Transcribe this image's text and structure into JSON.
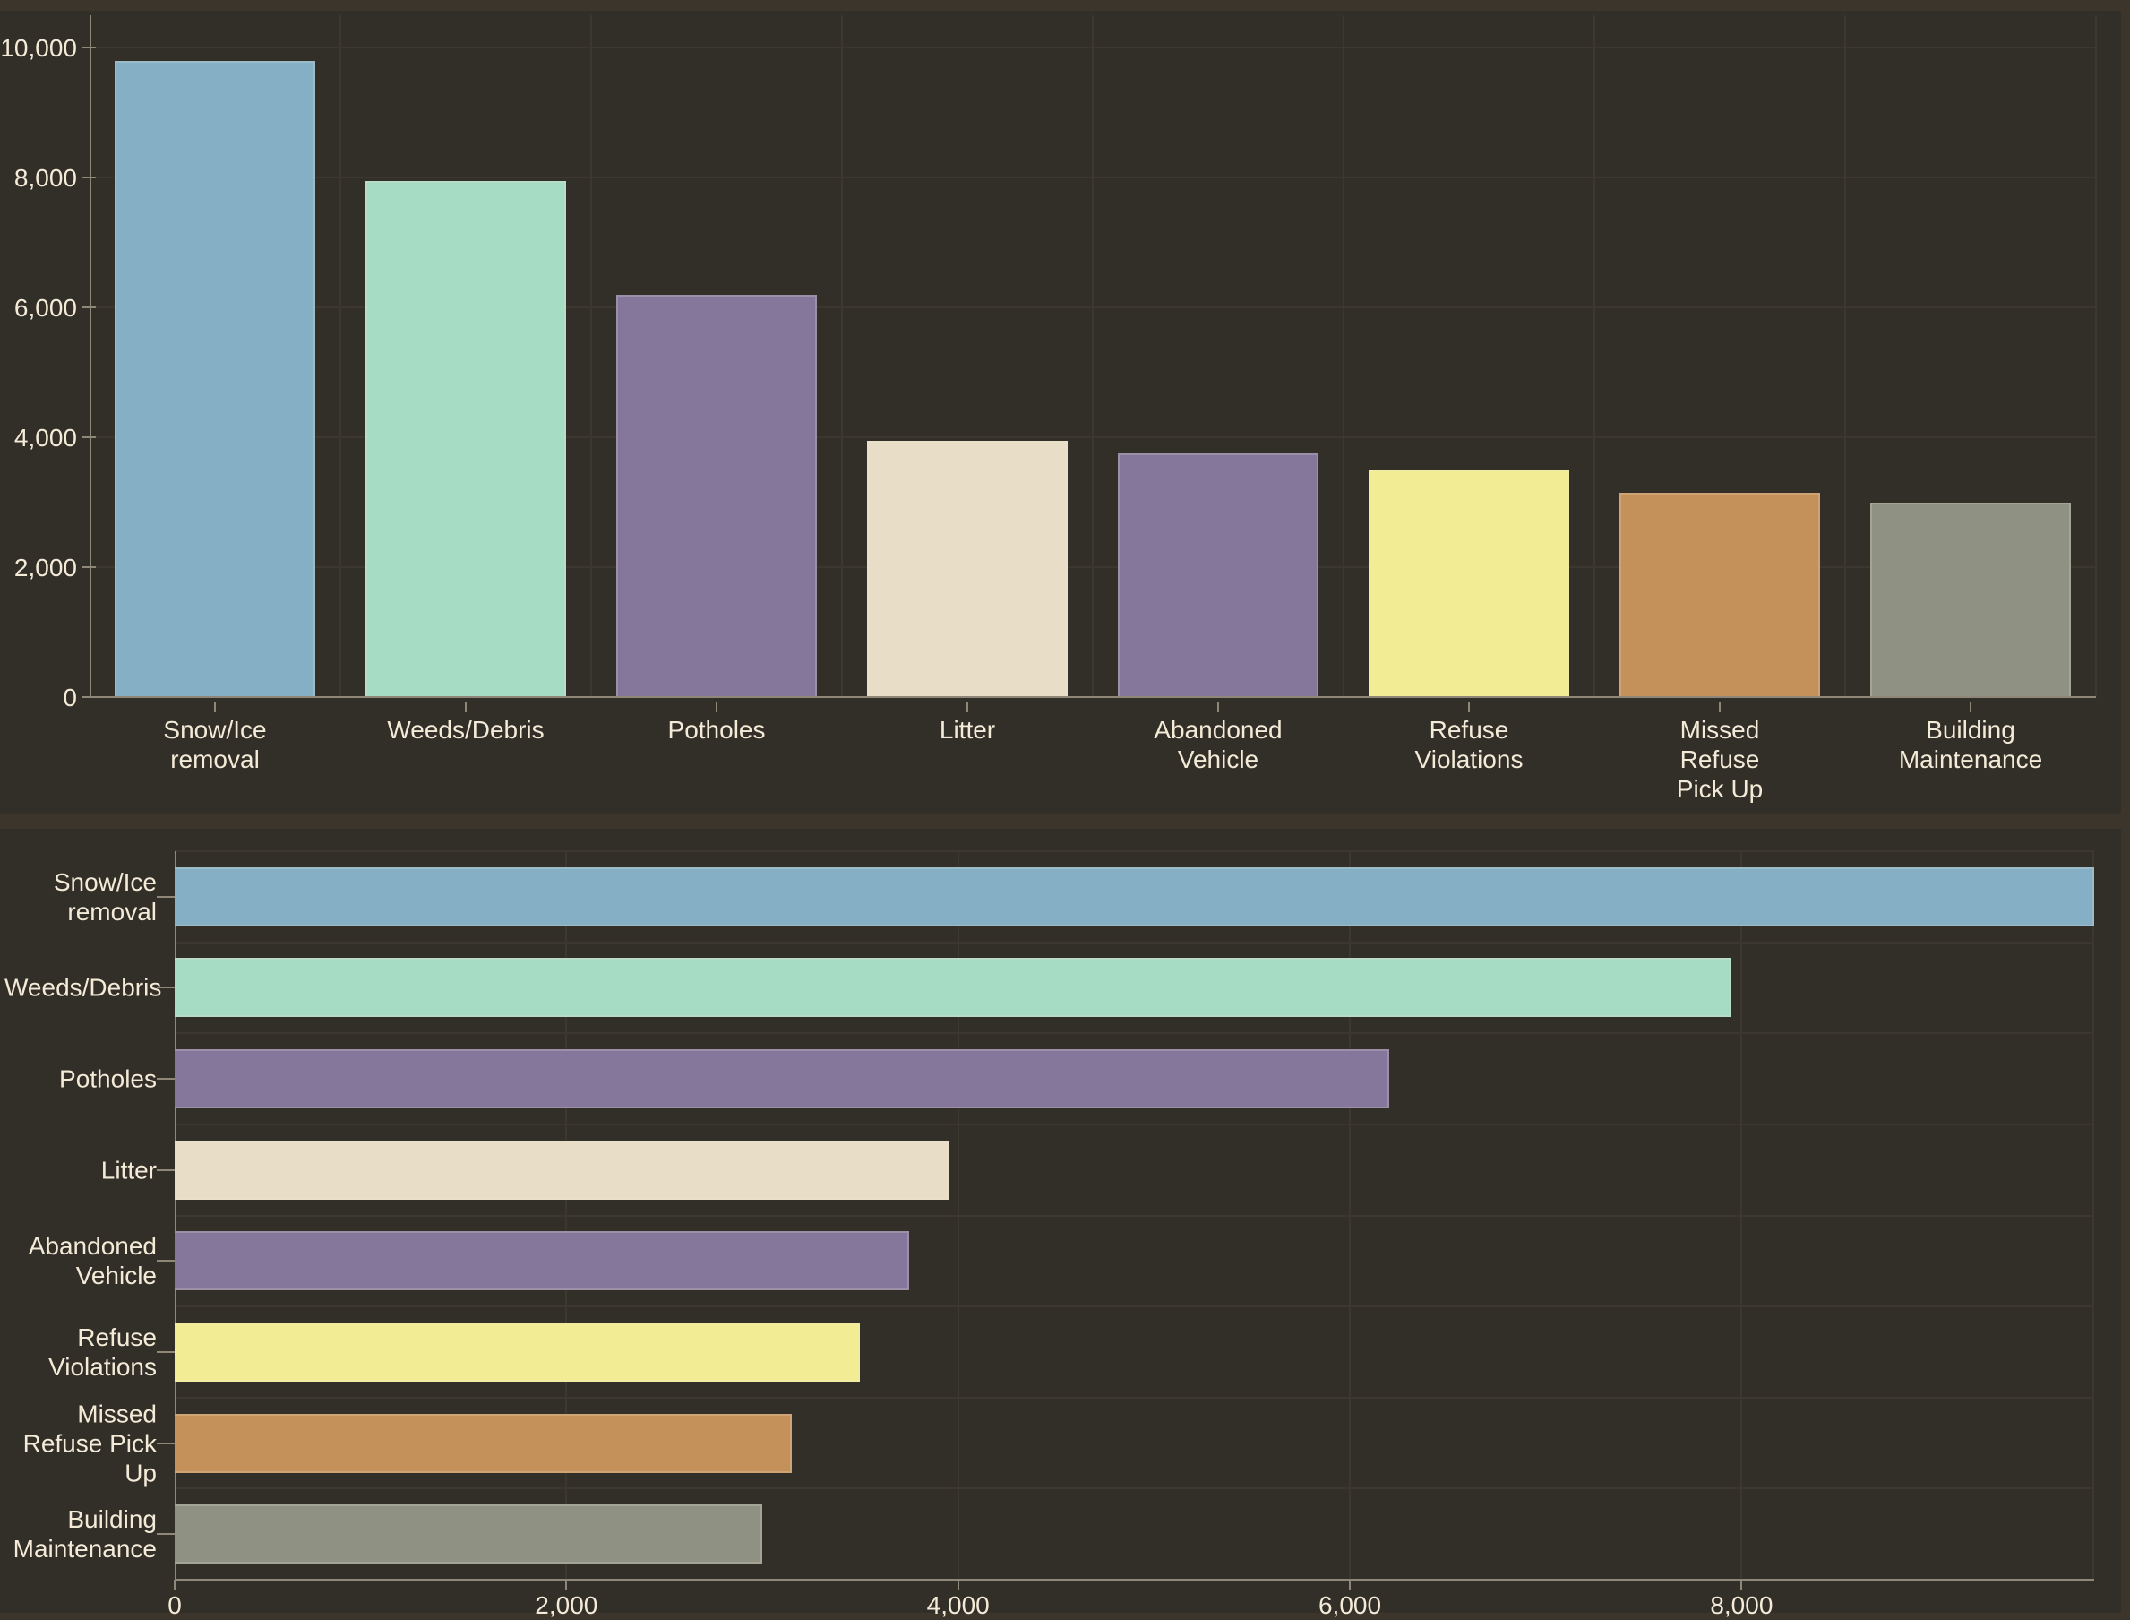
{
  "chart_data": [
    {
      "id": "top",
      "type": "bar",
      "orientation": "vertical",
      "title": "",
      "xlabel": "",
      "ylabel": "",
      "categories": [
        "Snow/Ice removal",
        "Weeds/Debris",
        "Potholes",
        "Litter",
        "Abandoned Vehicle",
        "Refuse Violations",
        "Missed Refuse Pick Up",
        "Building Maintenance"
      ],
      "category_label_lines": [
        [
          "Snow/Ice",
          "removal"
        ],
        [
          "Weeds/Debris"
        ],
        [
          "Potholes"
        ],
        [
          "Litter"
        ],
        [
          "Abandoned",
          "Vehicle"
        ],
        [
          "Refuse",
          "Violations"
        ],
        [
          "Missed",
          "Refuse",
          "Pick Up"
        ],
        [
          "Building",
          "Maintenance"
        ]
      ],
      "values": [
        9800,
        7950,
        6200,
        3950,
        3750,
        3500,
        3150,
        3000
      ],
      "ylim": [
        0,
        10000
      ],
      "yticks": [
        {
          "value": 0,
          "label": "0"
        },
        {
          "value": 2000,
          "label": "2,000"
        },
        {
          "value": 4000,
          "label": "4,000"
        },
        {
          "value": 6000,
          "label": "6,000"
        },
        {
          "value": 8000,
          "label": "8,000"
        },
        {
          "value": 10000,
          "label": "10,000"
        }
      ],
      "grid": true,
      "legend": false
    },
    {
      "id": "bottom",
      "type": "bar",
      "orientation": "horizontal",
      "title": "",
      "xlabel": "",
      "ylabel": "",
      "categories": [
        "Snow/Ice removal",
        "Weeds/Debris",
        "Potholes",
        "Litter",
        "Abandoned Vehicle",
        "Refuse Violations",
        "Missed Refuse Pick Up",
        "Building Maintenance"
      ],
      "category_label_lines": [
        [
          "Snow/Ice",
          "removal"
        ],
        [
          "Weeds/Debris"
        ],
        [
          "Potholes"
        ],
        [
          "Litter"
        ],
        [
          "Abandoned",
          "Vehicle"
        ],
        [
          "Refuse",
          "Violations"
        ],
        [
          "Missed",
          "Refuse Pick",
          "Up"
        ],
        [
          "Building",
          "Maintenance"
        ]
      ],
      "values": [
        9800,
        7950,
        6200,
        3950,
        3750,
        3500,
        3150,
        3000
      ],
      "xlim": [
        0,
        9800
      ],
      "xticks": [
        {
          "value": 0,
          "label": "0"
        },
        {
          "value": 2000,
          "label": "2,000"
        },
        {
          "value": 4000,
          "label": "4,000"
        },
        {
          "value": 6000,
          "label": "6,000"
        },
        {
          "value": 8000,
          "label": "8,000"
        }
      ],
      "grid": true,
      "legend": false
    }
  ],
  "bar_colors": [
    "#84AFC5",
    "#A6DCC3",
    "#85769B",
    "#E8DEC7",
    "#85769B",
    "#F2EC95",
    "#C4915A",
    "#8F9183"
  ],
  "style": {
    "page_bg": "#3B352C",
    "panel_bg": "#322E28",
    "grid_color": "#3D382F",
    "axis_color": "#8F8878",
    "text_color": "#F3EAD7"
  }
}
